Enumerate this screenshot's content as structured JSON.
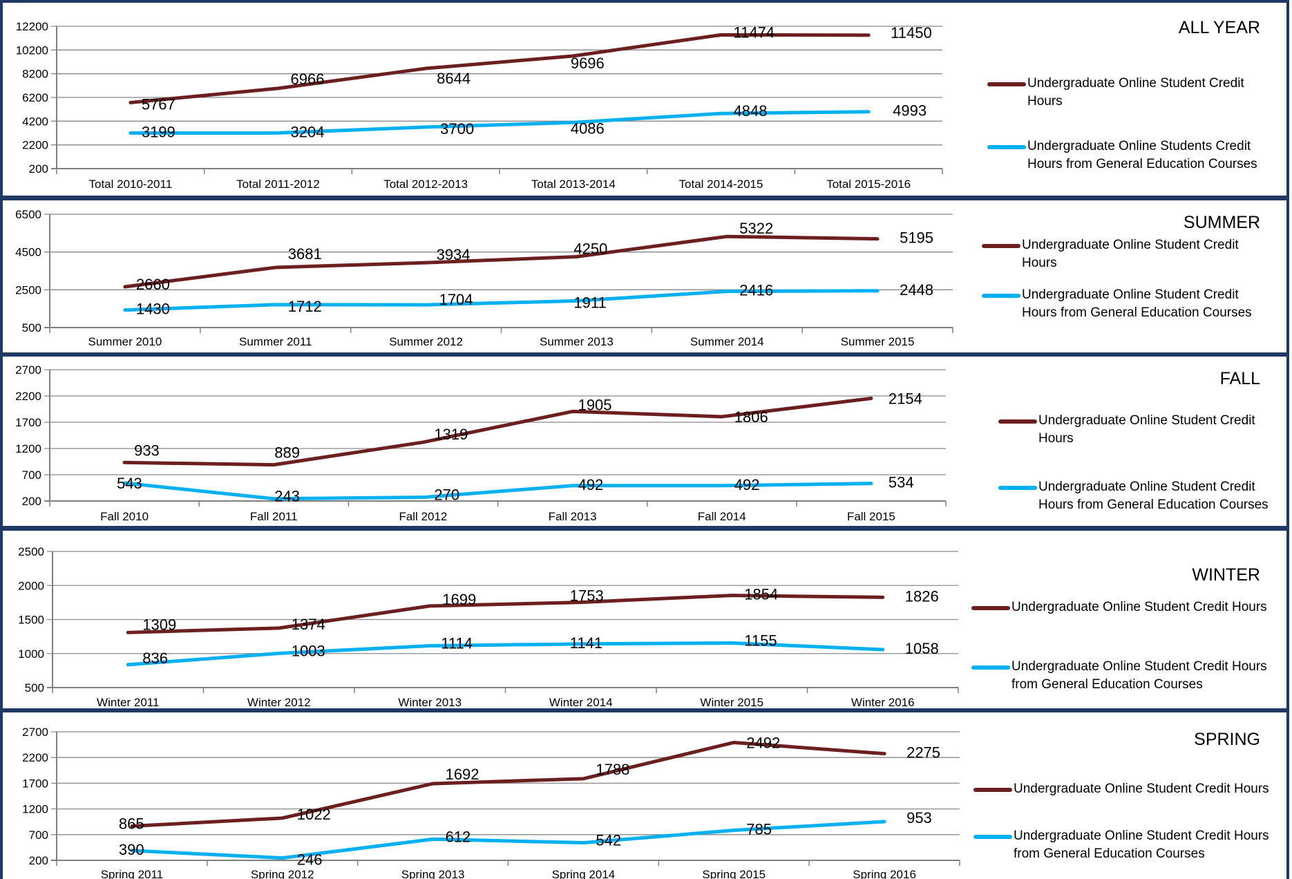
{
  "colors": {
    "credit_hours": "#6b1f1f",
    "gen_ed": "#00b0f0",
    "border": "#1f3864",
    "grid": "#898989"
  },
  "chart_data": [
    {
      "type": "line",
      "title": "ALL YEAR",
      "categories": [
        "Total 2010-2011",
        "Total 2011-2012",
        "Total 2012-2013",
        "Total 2013-2014",
        "Total 2014-2015",
        "Total 2015-2016"
      ],
      "yticks": [
        "200",
        "2200",
        "4200",
        "6200",
        "8200",
        "10200",
        "12200"
      ],
      "ylim": [
        200,
        12200
      ],
      "grid": true,
      "legend_position": "right",
      "series": [
        {
          "name": "Undergraduate Online Student Credit Hours",
          "values": [
            5767,
            6966,
            8644,
            9696,
            11474,
            11450
          ],
          "labels": [
            "5767",
            "6966",
            "8644",
            "9696",
            "11474",
            "11450"
          ]
        },
        {
          "name": "Undergraduate Online Students Credit Hours from General Education Courses",
          "values": [
            3199,
            3204,
            3700,
            4086,
            4848,
            4993
          ],
          "labels": [
            "3199",
            "3204",
            "3700",
            "4086",
            "4848",
            "4993"
          ]
        }
      ]
    },
    {
      "type": "line",
      "title": "SUMMER",
      "categories": [
        "Summer 2010",
        "Summer 2011",
        "Summer 2012",
        "Summer 2013",
        "Summer 2014",
        "Summer 2015"
      ],
      "yticks": [
        "500",
        "2500",
        "4500",
        "6500"
      ],
      "ylim": [
        500,
        6500
      ],
      "grid": true,
      "legend_position": "right",
      "series": [
        {
          "name": "Undergraduate Online Student Credit Hours",
          "values": [
            2660,
            3681,
            3934,
            4250,
            5322,
            5195
          ],
          "labels": [
            "2660",
            "3681",
            "3934",
            "4250",
            "5322",
            "5195"
          ]
        },
        {
          "name": "Undergraduate Online Student Credit Hours from General Education Courses",
          "values": [
            1430,
            1712,
            1704,
            1911,
            2416,
            2448
          ],
          "labels": [
            "1430",
            "1712",
            "1704",
            "1911",
            "2416",
            "2448"
          ]
        }
      ]
    },
    {
      "type": "line",
      "title": "FALL",
      "categories": [
        "Fall 2010",
        "Fall 2011",
        "Fall 2012",
        "Fall 2013",
        "Fall 2014",
        "Fall 2015"
      ],
      "yticks": [
        "200",
        "700",
        "1200",
        "1700",
        "2200",
        "2700"
      ],
      "ylim": [
        200,
        2700
      ],
      "grid": true,
      "legend_position": "right",
      "series": [
        {
          "name": "Undergraduate Online Student Credit Hours",
          "values": [
            933,
            889,
            1319,
            1905,
            1806,
            2154
          ],
          "labels": [
            "933",
            "889",
            "1319",
            "1905",
            "1806",
            "2154"
          ]
        },
        {
          "name": "Undergraduate Online Student Credit Hours from General Education Courses",
          "values": [
            543,
            243,
            270,
            492,
            492,
            534
          ],
          "labels": [
            "543",
            "243",
            "270",
            "492",
            "492",
            "534"
          ]
        }
      ]
    },
    {
      "type": "line",
      "title": "WINTER",
      "categories": [
        "Winter 2011",
        "Winter 2012",
        "Winter 2013",
        "Winter 2014",
        "Winter 2015",
        "Winter 2016"
      ],
      "yticks": [
        "500",
        "1000",
        "1500",
        "2000",
        "2500"
      ],
      "ylim": [
        500,
        2500
      ],
      "grid": true,
      "legend_position": "right",
      "series": [
        {
          "name": "Undergraduate Online Student Credit Hours",
          "values": [
            1309,
            1374,
            1699,
            1753,
            1854,
            1826
          ],
          "labels": [
            "1309",
            "1374",
            "1699",
            "1753",
            "1854",
            "1826"
          ]
        },
        {
          "name": "Undergraduate Online Student Credit Hours from General Education Courses",
          "values": [
            836,
            1003,
            1114,
            1141,
            1155,
            1058
          ],
          "labels": [
            "836",
            "1003",
            "1114",
            "1141",
            "1155",
            "1058"
          ]
        }
      ]
    },
    {
      "type": "line",
      "title": "SPRING",
      "categories": [
        "Spring 2011",
        "Spring 2012",
        "Spring 2013",
        "Spring 2014",
        "Spring 2015",
        "Spring 2016"
      ],
      "yticks": [
        "200",
        "700",
        "1200",
        "1700",
        "2200",
        "2700"
      ],
      "ylim": [
        200,
        2700
      ],
      "grid": true,
      "legend_position": "right",
      "series": [
        {
          "name": "Undergraduate Online Student Credit Hours",
          "values": [
            865,
            1022,
            1692,
            1788,
            2492,
            2275
          ],
          "labels": [
            "865",
            "1022",
            "1692",
            "1788",
            "2492",
            "2275"
          ]
        },
        {
          "name": "Undergraduate Online Student Credit Hours from General Education Courses",
          "values": [
            390,
            246,
            612,
            542,
            785,
            953
          ],
          "labels": [
            "390",
            "246",
            "612",
            "542",
            "785",
            "953"
          ]
        }
      ]
    }
  ]
}
